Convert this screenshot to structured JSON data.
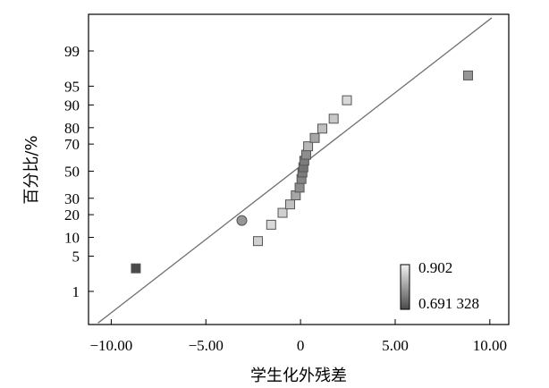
{
  "chart_data": {
    "type": "scatter",
    "title": "",
    "xlabel": "学生化外残差",
    "ylabel": "百分比/%",
    "xlim": [
      -11.2,
      11.0
    ],
    "xticks": [
      {
        "value": -10,
        "label": "−10.00"
      },
      {
        "value": -5,
        "label": "−5.00"
      },
      {
        "value": 0,
        "label": "0"
      },
      {
        "value": 5,
        "label": "5.00"
      },
      {
        "value": 10,
        "label": "10.00"
      }
    ],
    "y_scale": "normal-probability",
    "ylim_percent": [
      0.15,
      99.88
    ],
    "yticks": [
      1,
      5,
      10,
      20,
      30,
      50,
      70,
      80,
      90,
      95,
      99
    ],
    "grid": false,
    "reference_line": [
      {
        "x": -10.7,
        "percent": 0.165
      },
      {
        "x": 10.1,
        "percent": 99.85
      }
    ],
    "color_scale": {
      "max_label": "0.902",
      "min_label": "0.691 328",
      "light": "#f2f2f2",
      "dark": "#4a4a4a"
    },
    "points": [
      {
        "x": -8.7,
        "percent": 3.0,
        "shape": "square",
        "shade": 0.0
      },
      {
        "x": -3.1,
        "percent": 17.0,
        "shape": "circle",
        "shade": 0.45
      },
      {
        "x": -2.25,
        "percent": 8.8,
        "shape": "square",
        "shade": 0.8
      },
      {
        "x": -1.55,
        "percent": 15.0,
        "shape": "square",
        "shade": 0.85
      },
      {
        "x": -0.95,
        "percent": 21.0,
        "shape": "square",
        "shade": 0.8
      },
      {
        "x": -0.55,
        "percent": 26.0,
        "shape": "square",
        "shade": 0.7
      },
      {
        "x": -0.25,
        "percent": 32.0,
        "shape": "square",
        "shade": 0.55
      },
      {
        "x": -0.05,
        "percent": 37.5,
        "shape": "square",
        "shade": 0.4
      },
      {
        "x": 0.05,
        "percent": 44.0,
        "shape": "square",
        "shade": 0.35
      },
      {
        "x": 0.1,
        "percent": 49.0,
        "shape": "square",
        "shade": 0.3
      },
      {
        "x": 0.15,
        "percent": 53.0,
        "shape": "square",
        "shade": 0.25
      },
      {
        "x": 0.2,
        "percent": 58.0,
        "shape": "square",
        "shade": 0.3
      },
      {
        "x": 0.3,
        "percent": 62.5,
        "shape": "square",
        "shade": 0.4
      },
      {
        "x": 0.4,
        "percent": 68.5,
        "shape": "square",
        "shade": 0.65
      },
      {
        "x": 0.75,
        "percent": 74.0,
        "shape": "square",
        "shade": 0.55
      },
      {
        "x": 1.15,
        "percent": 79.5,
        "shape": "square",
        "shade": 0.7
      },
      {
        "x": 1.75,
        "percent": 84.5,
        "shape": "square",
        "shade": 0.75
      },
      {
        "x": 2.45,
        "percent": 91.5,
        "shape": "square",
        "shade": 0.85
      },
      {
        "x": 8.85,
        "percent": 96.8,
        "shape": "square",
        "shade": 0.45
      }
    ]
  }
}
